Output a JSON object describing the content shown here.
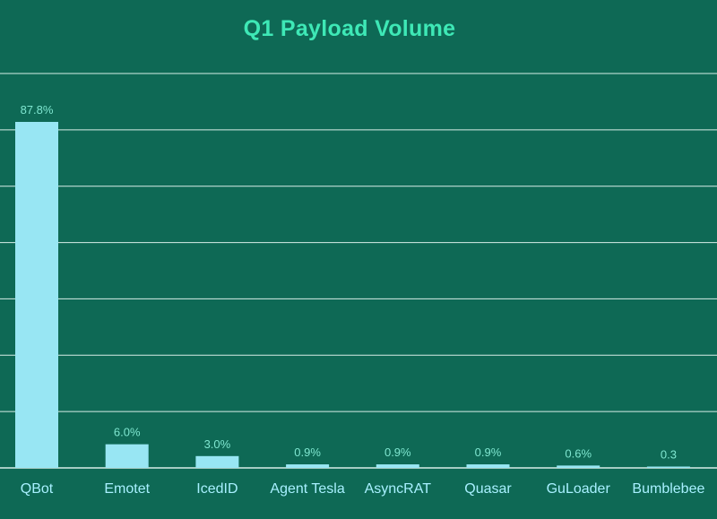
{
  "chart_data": {
    "type": "bar",
    "title": "Q1 Payload Volume",
    "categories": [
      "QBot",
      "Emotet",
      "IcedID",
      "Agent Tesla",
      "AsyncRAT",
      "Quasar",
      "GuLoader",
      "Bumblebee"
    ],
    "values": [
      87.8,
      6.0,
      3.0,
      0.9,
      0.9,
      0.9,
      0.6,
      0.3
    ],
    "data_labels": [
      "87.8%",
      "6.0%",
      "3.0%",
      "0.9%",
      "0.9%",
      "0.9%",
      "0.6%",
      "0.3"
    ],
    "xlabel": "",
    "ylabel": "",
    "ylim": [
      0,
      100
    ],
    "grid": true,
    "legend": "none",
    "colors": {
      "background": "#0e6955",
      "bar": "#98e6f3",
      "grid": "#d7eee8",
      "title": "#3ee8b6",
      "data_label": "#7fe6d0",
      "category_label": "#a8f0ff"
    }
  }
}
